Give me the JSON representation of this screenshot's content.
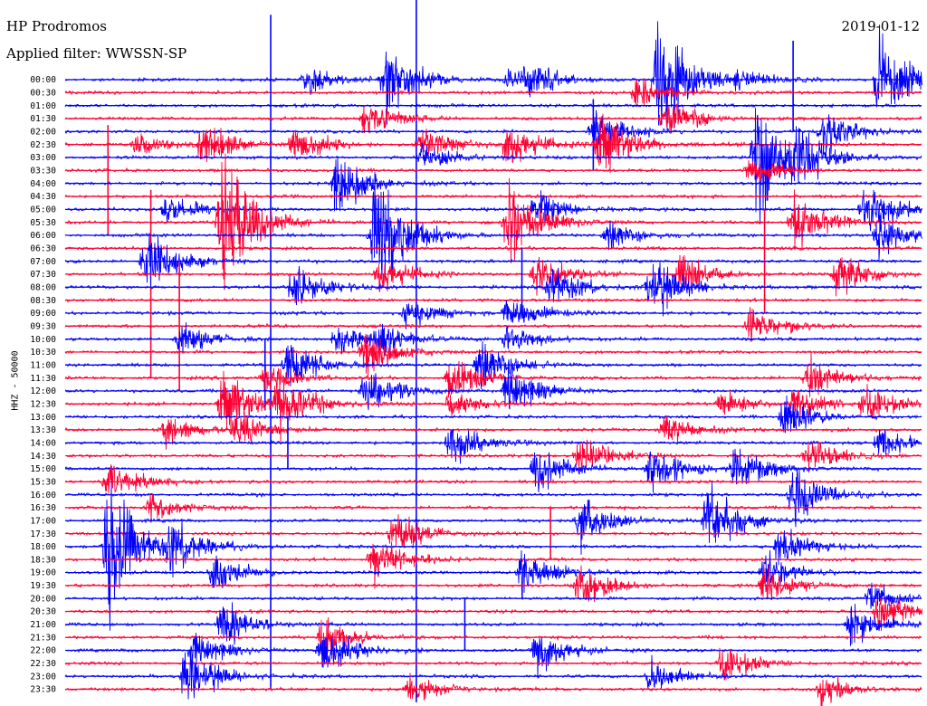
{
  "header": {
    "station": "HP Prodromos",
    "filter_label": "Applied filter:",
    "filter_value": "WWSSN-SP",
    "date": "2019-01-12"
  },
  "channel_label": "HHZ - 50000",
  "colors": {
    "odd_trace": "#0000ff",
    "even_trace": "#ff0033",
    "background": "#ffffff"
  },
  "chart_data": {
    "type": "helicorder",
    "title": "HP Prodromos",
    "ylabel": "HHZ - 50000",
    "row_labels": [
      "00:00",
      "00:30",
      "01:00",
      "01:30",
      "02:00",
      "02:30",
      "03:00",
      "03:30",
      "04:00",
      "04:30",
      "05:00",
      "05:30",
      "06:00",
      "06:30",
      "07:00",
      "07:30",
      "08:00",
      "08:30",
      "09:00",
      "09:30",
      "10:00",
      "10:30",
      "11:00",
      "11:30",
      "12:00",
      "12:30",
      "13:00",
      "13:30",
      "14:00",
      "14:30",
      "15:00",
      "15:30",
      "16:00",
      "16:30",
      "17:00",
      "17:30",
      "18:00",
      "18:30",
      "19:00",
      "19:30",
      "20:00",
      "20:30",
      "21:00",
      "21:30",
      "22:00",
      "22:30",
      "23:00",
      "23:30"
    ],
    "minutes_per_row": 30,
    "trace_colors": [
      "#0000ff",
      "#ff0033"
    ],
    "events": [
      {
        "row": 0,
        "minute": 8.5,
        "amplitude": 1.8
      },
      {
        "row": 0,
        "minute": 15.5,
        "amplitude": 1.1
      },
      {
        "row": 0,
        "minute": 11.2,
        "amplitude": 5.0
      },
      {
        "row": 0,
        "minute": 16.2,
        "amplitude": 2.0
      },
      {
        "row": 0,
        "minute": 20.8,
        "amplitude": 9.0
      },
      {
        "row": 0,
        "minute": 23.5,
        "amplitude": 1.2
      },
      {
        "row": 0,
        "minute": 28.5,
        "amplitude": 6.0
      },
      {
        "row": 1,
        "minute": 20.0,
        "amplitude": 2.0
      },
      {
        "row": 3,
        "minute": 10.5,
        "amplitude": 2.6
      },
      {
        "row": 3,
        "minute": 21.0,
        "amplitude": 2.5
      },
      {
        "row": 4,
        "minute": 18.5,
        "amplitude": 3.0
      },
      {
        "row": 4,
        "minute": 26.5,
        "amplitude": 3.5
      },
      {
        "row": 5,
        "minute": 2.5,
        "amplitude": 1.5
      },
      {
        "row": 5,
        "minute": 4.8,
        "amplitude": 3.0
      },
      {
        "row": 5,
        "minute": 8.0,
        "amplitude": 2.6
      },
      {
        "row": 5,
        "minute": 12.5,
        "amplitude": 2.2
      },
      {
        "row": 5,
        "minute": 15.5,
        "amplitude": 3.0
      },
      {
        "row": 5,
        "minute": 18.7,
        "amplitude": 5.0
      },
      {
        "row": 6,
        "minute": 12.5,
        "amplitude": 2.0
      },
      {
        "row": 6,
        "minute": 25.5,
        "amplitude": 3.0
      },
      {
        "row": 6,
        "minute": 24.2,
        "amplitude": 8.0
      },
      {
        "row": 7,
        "minute": 24.0,
        "amplitude": 2.0
      },
      {
        "row": 8,
        "minute": 9.5,
        "amplitude": 4.0
      },
      {
        "row": 10,
        "minute": 3.5,
        "amplitude": 2.2
      },
      {
        "row": 10,
        "minute": 16.5,
        "amplitude": 2.5
      },
      {
        "row": 10,
        "minute": 28.0,
        "amplitude": 4.0
      },
      {
        "row": 11,
        "minute": 5.5,
        "amplitude": 10.0
      },
      {
        "row": 11,
        "minute": 15.5,
        "amplitude": 5.5
      },
      {
        "row": 11,
        "minute": 25.5,
        "amplitude": 4.0
      },
      {
        "row": 12,
        "minute": 11.0,
        "amplitude": 3.0
      },
      {
        "row": 12,
        "minute": 10.8,
        "amplitude": 6.0
      },
      {
        "row": 12,
        "minute": 19.0,
        "amplitude": 2.0
      },
      {
        "row": 12,
        "minute": 28.5,
        "amplitude": 3.0
      },
      {
        "row": 14,
        "minute": 2.8,
        "amplitude": 5.0
      },
      {
        "row": 15,
        "minute": 11.0,
        "amplitude": 2.5
      },
      {
        "row": 15,
        "minute": 16.5,
        "amplitude": 3.0
      },
      {
        "row": 15,
        "minute": 21.5,
        "amplitude": 3.0
      },
      {
        "row": 15,
        "minute": 27.0,
        "amplitude": 3.0
      },
      {
        "row": 16,
        "minute": 8.0,
        "amplitude": 3.0
      },
      {
        "row": 16,
        "minute": 17.0,
        "amplitude": 3.0
      },
      {
        "row": 16,
        "minute": 20.5,
        "amplitude": 4.0
      },
      {
        "row": 18,
        "minute": 12.0,
        "amplitude": 2.0
      },
      {
        "row": 18,
        "minute": 15.5,
        "amplitude": 2.5
      },
      {
        "row": 19,
        "minute": 24.0,
        "amplitude": 2.5
      },
      {
        "row": 20,
        "minute": 4.0,
        "amplitude": 2.0
      },
      {
        "row": 20,
        "minute": 9.5,
        "amplitude": 2.0
      },
      {
        "row": 20,
        "minute": 11.0,
        "amplitude": 2.0
      },
      {
        "row": 20,
        "minute": 15.5,
        "amplitude": 2.0
      },
      {
        "row": 21,
        "minute": 10.5,
        "amplitude": 3.0
      },
      {
        "row": 22,
        "minute": 7.8,
        "amplitude": 3.5
      },
      {
        "row": 22,
        "minute": 14.5,
        "amplitude": 3.5
      },
      {
        "row": 23,
        "minute": 7.0,
        "amplitude": 2.0
      },
      {
        "row": 23,
        "minute": 13.5,
        "amplitude": 3.0
      },
      {
        "row": 23,
        "minute": 26.0,
        "amplitude": 3.0
      },
      {
        "row": 24,
        "minute": 10.5,
        "amplitude": 3.0
      },
      {
        "row": 24,
        "minute": 15.5,
        "amplitude": 3.5
      },
      {
        "row": 25,
        "minute": 5.5,
        "amplitude": 5.0
      },
      {
        "row": 25,
        "minute": 7.5,
        "amplitude": 4.0
      },
      {
        "row": 25,
        "minute": 13.5,
        "amplitude": 2.0
      },
      {
        "row": 25,
        "minute": 23.0,
        "amplitude": 2.0
      },
      {
        "row": 25,
        "minute": 25.5,
        "amplitude": 2.0
      },
      {
        "row": 25,
        "minute": 28.0,
        "amplitude": 2.5
      },
      {
        "row": 26,
        "minute": 25.2,
        "amplitude": 3.0
      },
      {
        "row": 27,
        "minute": 3.5,
        "amplitude": 2.0
      },
      {
        "row": 27,
        "minute": 6.0,
        "amplitude": 2.5
      },
      {
        "row": 27,
        "minute": 21.0,
        "amplitude": 2.0
      },
      {
        "row": 28,
        "minute": 13.5,
        "amplitude": 3.0
      },
      {
        "row": 28,
        "minute": 28.5,
        "amplitude": 2.0
      },
      {
        "row": 29,
        "minute": 18.0,
        "amplitude": 3.0
      },
      {
        "row": 29,
        "minute": 26.0,
        "amplitude": 2.5
      },
      {
        "row": 30,
        "minute": 20.5,
        "amplitude": 3.5
      },
      {
        "row": 30,
        "minute": 23.5,
        "amplitude": 3.0
      },
      {
        "row": 30,
        "minute": 16.5,
        "amplitude": 3.0
      },
      {
        "row": 31,
        "minute": 1.5,
        "amplitude": 3.0
      },
      {
        "row": 32,
        "minute": 25.5,
        "amplitude": 4.0
      },
      {
        "row": 33,
        "minute": 3.0,
        "amplitude": 1.8
      },
      {
        "row": 34,
        "minute": 18.0,
        "amplitude": 3.5
      },
      {
        "row": 34,
        "minute": 22.5,
        "amplitude": 5.0
      },
      {
        "row": 35,
        "minute": 11.5,
        "amplitude": 3.0
      },
      {
        "row": 36,
        "minute": 1.5,
        "amplitude": 9.0
      },
      {
        "row": 36,
        "minute": 3.7,
        "amplitude": 3.0
      },
      {
        "row": 36,
        "minute": 25.0,
        "amplitude": 3.0
      },
      {
        "row": 37,
        "minute": 10.8,
        "amplitude": 3.5
      },
      {
        "row": 38,
        "minute": 5.2,
        "amplitude": 2.5
      },
      {
        "row": 38,
        "minute": 16.0,
        "amplitude": 3.5
      },
      {
        "row": 38,
        "minute": 24.5,
        "amplitude": 2.5
      },
      {
        "row": 39,
        "minute": 18.0,
        "amplitude": 3.0
      },
      {
        "row": 39,
        "minute": 24.5,
        "amplitude": 2.5
      },
      {
        "row": 40,
        "minute": 28.2,
        "amplitude": 2.0
      },
      {
        "row": 41,
        "minute": 28.5,
        "amplitude": 3.0
      },
      {
        "row": 42,
        "minute": 5.5,
        "amplitude": 3.0
      },
      {
        "row": 42,
        "minute": 27.5,
        "amplitude": 2.5
      },
      {
        "row": 43,
        "minute": 9.0,
        "amplitude": 3.0
      },
      {
        "row": 44,
        "minute": 4.5,
        "amplitude": 2.5
      },
      {
        "row": 44,
        "minute": 9.0,
        "amplitude": 3.5
      },
      {
        "row": 44,
        "minute": 16.5,
        "amplitude": 3.0
      },
      {
        "row": 45,
        "minute": 23.0,
        "amplitude": 2.5
      },
      {
        "row": 46,
        "minute": 4.2,
        "amplitude": 4.0
      },
      {
        "row": 46,
        "minute": 20.5,
        "amplitude": 2.5
      },
      {
        "row": 47,
        "minute": 12.0,
        "amplitude": 2.0
      },
      {
        "row": 47,
        "minute": 26.5,
        "amplitude": 2.0
      }
    ],
    "spikes": [
      {
        "row": 0,
        "minute": 12.3,
        "up": 9.0,
        "down": 48.0
      },
      {
        "row": 0,
        "minute": 25.5,
        "up": 3.0,
        "down": 4.0
      },
      {
        "row": 2,
        "minute": 7.2,
        "up": 7.0,
        "down": 45.0
      },
      {
        "row": 4,
        "minute": 18.5,
        "up": 2.5,
        "down": 3.0
      },
      {
        "row": 7,
        "minute": 1.5,
        "up": 3.5,
        "down": 5.0
      },
      {
        "row": 11,
        "minute": 3.0,
        "up": 2.5,
        "down": 4.0
      },
      {
        "row": 13,
        "minute": 24.5,
        "up": 3.0,
        "down": 5.0
      },
      {
        "row": 16,
        "minute": 16.0,
        "up": 3.0,
        "down": 2.0
      },
      {
        "row": 17,
        "minute": 4.0,
        "up": 3.0,
        "down": 7.0
      },
      {
        "row": 19,
        "minute": 3.0,
        "up": 3.0,
        "down": 4.0
      },
      {
        "row": 22,
        "minute": 7.0,
        "up": 2.0,
        "down": 3.5
      },
      {
        "row": 28,
        "minute": 7.8,
        "up": 2.0,
        "down": 2.0
      },
      {
        "row": 35,
        "minute": 17.0,
        "up": 2.0,
        "down": 2.0
      },
      {
        "row": 42,
        "minute": 14.0,
        "up": 2.0,
        "down": 2.0
      }
    ]
  }
}
